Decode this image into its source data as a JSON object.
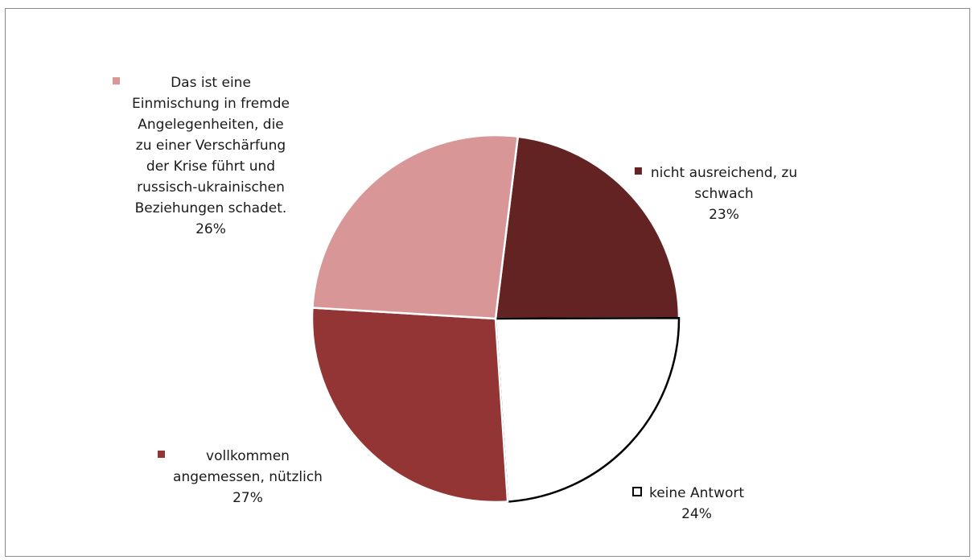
{
  "chart_data": {
    "type": "pie",
    "title": "",
    "slices": [
      {
        "label_lines": [
          "nicht ausreichend, zu",
          "schwach"
        ],
        "label": "nicht ausreichend, zu schwach",
        "value": 23,
        "value_label": "23%",
        "color": "#632323",
        "legend_position": "top-right"
      },
      {
        "label_lines": [
          "keine Antwort"
        ],
        "label": "keine Antwort",
        "value": 24,
        "value_label": "24%",
        "color": "#ffffff",
        "legend_position": "bottom-right"
      },
      {
        "label_lines": [
          "vollkommen",
          "angemessen, nützlich"
        ],
        "label": "vollkommen angemessen, nützlich",
        "value": 27,
        "value_label": "27%",
        "color": "#933535",
        "legend_position": "bottom-left"
      },
      {
        "label_lines": [
          "Das ist eine",
          "Einmischung in fremde",
          "Angelegenheiten, die",
          "zu einer Verschärfung",
          "der Krise führt und",
          "russisch-ukrainischen",
          "Beziehungen schadet."
        ],
        "label": "Das ist eine Einmischung in fremde Angelegenheiten, die zu einer Verschärfung der Krise führt und russisch-ukrainischen Beziehungen schadet.",
        "value": 26,
        "value_label": "26%",
        "color": "#d89696",
        "legend_position": "top-left"
      }
    ],
    "start_angle_deg": 7,
    "legend": "data-labels"
  }
}
